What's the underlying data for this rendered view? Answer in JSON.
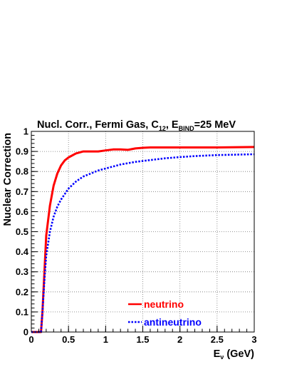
{
  "chart_data": {
    "type": "line",
    "title_parts": {
      "prefix": "Nucl. Corr.,  Fermi Gas, C",
      "c_sub": "12",
      "mid": ", E",
      "e_sub": "BIND",
      "suffix": "=25 MeV"
    },
    "xlabel_parts": {
      "main": "E",
      "sub": "ν",
      "unit": " (GeV)"
    },
    "ylabel": "Nuclear Correction",
    "xlim": [
      0,
      3
    ],
    "ylim": [
      0,
      1
    ],
    "x_ticks": [
      "0",
      "0.5",
      "1",
      "1.5",
      "2",
      "2.5",
      "3"
    ],
    "y_ticks": [
      "0",
      "0.1",
      "0.2",
      "0.3",
      "0.4",
      "0.5",
      "0.6",
      "0.7",
      "0.8",
      "0.9",
      "1"
    ],
    "grid": true,
    "legend_position": "bottom-center",
    "series": [
      {
        "name": "neutrino",
        "color": "#ff0000",
        "style": "solid",
        "x": [
          0,
          0.13,
          0.15,
          0.18,
          0.2,
          0.25,
          0.3,
          0.35,
          0.4,
          0.45,
          0.5,
          0.6,
          0.7,
          0.8,
          0.9,
          1.0,
          1.1,
          1.2,
          1.3,
          1.4,
          1.5,
          1.6,
          1.8,
          2.0,
          2.5,
          3.0
        ],
        "y": [
          0,
          0,
          0.1,
          0.33,
          0.48,
          0.63,
          0.73,
          0.79,
          0.83,
          0.855,
          0.87,
          0.89,
          0.9,
          0.9,
          0.9,
          0.905,
          0.91,
          0.91,
          0.908,
          0.915,
          0.918,
          0.92,
          0.92,
          0.92,
          0.92,
          0.922
        ]
      },
      {
        "name": "antineutrino",
        "color": "#0000ff",
        "style": "dotted",
        "x": [
          0,
          0.13,
          0.15,
          0.18,
          0.2,
          0.25,
          0.3,
          0.35,
          0.4,
          0.5,
          0.6,
          0.7,
          0.8,
          0.9,
          1.0,
          1.2,
          1.4,
          1.6,
          1.8,
          2.0,
          2.2,
          2.5,
          3.0
        ],
        "y": [
          0,
          0,
          0.1,
          0.28,
          0.38,
          0.5,
          0.575,
          0.625,
          0.66,
          0.715,
          0.75,
          0.775,
          0.79,
          0.805,
          0.815,
          0.835,
          0.848,
          0.857,
          0.866,
          0.872,
          0.877,
          0.882,
          0.886
        ]
      }
    ]
  }
}
